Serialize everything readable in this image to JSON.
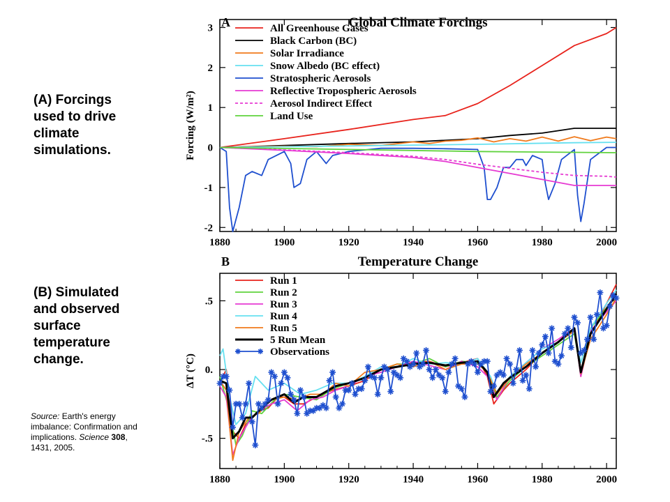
{
  "captions": {
    "a": "(A) Forcings used to drive climate simulations.",
    "b": "(B) Simulated and observed surface temperature change."
  },
  "source": {
    "label": "Source:",
    "text": " Earth's energy imbalance: Confirmation and implications. ",
    "journal": "Science",
    "volume": "308",
    "pages": ", 1431, 2005."
  },
  "colors": {
    "ghg": "#e8231c",
    "bc": "#000000",
    "solar": "#f07a1c",
    "snow": "#66e0f0",
    "strat": "#1e4fcf",
    "refl": "#e63ad2",
    "indirect": "#e63ad2",
    "land": "#5fd23c",
    "run1": "#e8231c",
    "run2": "#5fd23c",
    "run3": "#e63ad2",
    "run4": "#66e0f0",
    "run5": "#f07a1c",
    "mean": "#000000",
    "obs": "#1e4fcf"
  },
  "chart_data": [
    {
      "type": "line",
      "panel_letter": "A",
      "title": "Global Climate Forcings",
      "ylabel": "Forcing (W/m²)",
      "xlim": [
        1880,
        2003
      ],
      "ylim": [
        -2.1,
        3.2
      ],
      "x_ticks": [
        "1880",
        "1900",
        "1920",
        "1940",
        "1960",
        "1980",
        "2000"
      ],
      "y_ticks": [
        "3",
        "2",
        "1",
        "0",
        "-1",
        "-2"
      ],
      "legend_position": "top-left",
      "series": [
        {
          "name": "All Greenhouse Gases",
          "color_key": "ghg",
          "x": [
            1880,
            1900,
            1920,
            1940,
            1950,
            1960,
            1970,
            1980,
            1990,
            2000,
            2003
          ],
          "values": [
            0,
            0.22,
            0.45,
            0.7,
            0.8,
            1.1,
            1.55,
            2.05,
            2.55,
            2.85,
            3.0
          ]
        },
        {
          "name": "Black Carbon (BC)",
          "color_key": "bc",
          "x": [
            1880,
            1900,
            1920,
            1940,
            1960,
            1970,
            1980,
            1990,
            2003
          ],
          "values": [
            0,
            0.05,
            0.1,
            0.14,
            0.22,
            0.3,
            0.36,
            0.48,
            0.48
          ]
        },
        {
          "name": "Solar Irradiance",
          "color_key": "solar",
          "x": [
            1880,
            1890,
            1900,
            1910,
            1920,
            1930,
            1940,
            1945,
            1950,
            1955,
            1960,
            1965,
            1970,
            1975,
            1980,
            1985,
            1990,
            1995,
            2000,
            2003
          ],
          "values": [
            0,
            0.02,
            0.03,
            0.02,
            0.08,
            0.05,
            0.14,
            0.1,
            0.16,
            0.18,
            0.24,
            0.14,
            0.22,
            0.16,
            0.26,
            0.16,
            0.27,
            0.17,
            0.26,
            0.22
          ]
        },
        {
          "name": "Snow Albedo (BC effect)",
          "color_key": "snow",
          "x": [
            1880,
            1920,
            1960,
            1990,
            2003
          ],
          "values": [
            0,
            0.04,
            0.08,
            0.12,
            0.13
          ]
        },
        {
          "name": "Stratospheric Aerosols",
          "color_key": "strat",
          "x": [
            1880,
            1882,
            1883,
            1884,
            1886,
            1888,
            1890,
            1893,
            1895,
            1900,
            1902,
            1903,
            1905,
            1907,
            1910,
            1912,
            1913,
            1915,
            1920,
            1930,
            1940,
            1950,
            1960,
            1962,
            1963,
            1964,
            1966,
            1968,
            1970,
            1972,
            1974,
            1975,
            1977,
            1980,
            1981,
            1982,
            1984,
            1986,
            1990,
            1991,
            1992,
            1993,
            1995,
            2000,
            2003
          ],
          "values": [
            0,
            -0.1,
            -1.5,
            -2.1,
            -1.5,
            -0.7,
            -0.6,
            -0.7,
            -0.3,
            -0.1,
            -0.4,
            -1.0,
            -0.9,
            -0.3,
            -0.1,
            -0.3,
            -0.4,
            -0.2,
            -0.1,
            -0.02,
            -0.02,
            -0.03,
            -0.05,
            -0.5,
            -1.3,
            -1.3,
            -1.0,
            -0.5,
            -0.5,
            -0.3,
            -0.3,
            -0.45,
            -0.2,
            -0.3,
            -0.9,
            -1.3,
            -0.9,
            -0.3,
            -0.05,
            -1.2,
            -1.85,
            -1.4,
            -0.3,
            0,
            0
          ]
        },
        {
          "name": "Reflective Tropospheric Aerosols",
          "color_key": "refl",
          "x": [
            1880,
            1900,
            1920,
            1940,
            1950,
            1960,
            1970,
            1980,
            1990,
            2000,
            2003
          ],
          "values": [
            0,
            -0.07,
            -0.15,
            -0.25,
            -0.35,
            -0.5,
            -0.65,
            -0.8,
            -0.95,
            -0.95,
            -0.95
          ]
        },
        {
          "name": "Aerosol Indirect Effect",
          "color_key": "indirect",
          "dashed": true,
          "x": [
            1880,
            1900,
            1920,
            1940,
            1950,
            1960,
            1970,
            1980,
            1990,
            2000,
            2003
          ],
          "values": [
            0,
            -0.06,
            -0.13,
            -0.22,
            -0.3,
            -0.42,
            -0.52,
            -0.62,
            -0.7,
            -0.72,
            -0.74
          ]
        },
        {
          "name": "Land Use",
          "color_key": "land",
          "x": [
            1880,
            1920,
            1960,
            2003
          ],
          "values": [
            0,
            -0.05,
            -0.1,
            -0.13
          ]
        }
      ]
    },
    {
      "type": "line",
      "panel_letter": "B",
      "title": "Temperature Change",
      "ylabel": "ΔT (°C)",
      "xlim": [
        1880,
        2003
      ],
      "ylim": [
        -0.72,
        0.7
      ],
      "x_ticks": [
        "1880",
        "1900",
        "1920",
        "1940",
        "1960",
        "1980",
        "2000"
      ],
      "y_ticks": [
        ".5",
        "0.",
        "-.5"
      ],
      "legend_position": "top-left",
      "series": [
        {
          "name": "Run 1",
          "color_key": "run1",
          "x": [
            1880,
            1882,
            1884,
            1886,
            1888,
            1890,
            1892,
            1895,
            1898,
            1900,
            1903,
            1906,
            1910,
            1915,
            1920,
            1925,
            1930,
            1935,
            1940,
            1945,
            1950,
            1955,
            1960,
            1963,
            1965,
            1968,
            1970,
            1975,
            1980,
            1985,
            1990,
            1992,
            1995,
            2000,
            2003
          ],
          "values": [
            -0.1,
            0,
            -0.45,
            -0.5,
            -0.4,
            -0.35,
            -0.3,
            -0.28,
            -0.2,
            -0.2,
            -0.25,
            -0.25,
            -0.2,
            -0.15,
            -0.12,
            -0.08,
            0,
            0.02,
            0.05,
            0.06,
            0.02,
            0.05,
            0.08,
            -0.05,
            -0.25,
            -0.15,
            -0.1,
            0,
            0.12,
            0.2,
            0.3,
            -0.05,
            0.25,
            0.48,
            0.62
          ]
        },
        {
          "name": "Run 2",
          "color_key": "run2",
          "x": [
            1880,
            1883,
            1885,
            1887,
            1890,
            1893,
            1897,
            1900,
            1905,
            1910,
            1915,
            1920,
            1925,
            1930,
            1935,
            1940,
            1945,
            1950,
            1955,
            1960,
            1963,
            1966,
            1970,
            1975,
            1980,
            1985,
            1990,
            1992,
            1995,
            2000,
            2003
          ],
          "values": [
            -0.05,
            -0.3,
            -0.55,
            -0.48,
            -0.3,
            -0.32,
            -0.22,
            -0.18,
            -0.2,
            -0.22,
            -0.14,
            -0.1,
            -0.06,
            0,
            0.04,
            0.04,
            0.08,
            0.02,
            0.06,
            0.05,
            -0.02,
            -0.2,
            -0.08,
            0.02,
            0.1,
            0.18,
            0.26,
            -0.02,
            0.3,
            0.45,
            0.55
          ]
        },
        {
          "name": "Run 3",
          "color_key": "run3",
          "x": [
            1880,
            1882,
            1884,
            1886,
            1889,
            1892,
            1896,
            1900,
            1904,
            1908,
            1912,
            1916,
            1920,
            1925,
            1930,
            1935,
            1940,
            1945,
            1950,
            1955,
            1960,
            1963,
            1966,
            1970,
            1975,
            1980,
            1985,
            1990,
            1992,
            1995,
            2000,
            2003
          ],
          "values": [
            -0.12,
            -0.2,
            -0.62,
            -0.5,
            -0.38,
            -0.3,
            -0.25,
            -0.22,
            -0.3,
            -0.22,
            -0.2,
            -0.15,
            -0.12,
            -0.05,
            -0.02,
            0.02,
            0.06,
            0.03,
            0.0,
            0.06,
            0.02,
            -0.05,
            -0.22,
            -0.05,
            0.05,
            0.15,
            0.22,
            0.3,
            -0.05,
            0.28,
            0.42,
            0.5
          ]
        },
        {
          "name": "Run 4",
          "color_key": "run4",
          "x": [
            1880,
            1881,
            1883,
            1885,
            1888,
            1891,
            1895,
            1900,
            1905,
            1910,
            1915,
            1920,
            1925,
            1930,
            1935,
            1940,
            1945,
            1950,
            1955,
            1960,
            1964,
            1966,
            1970,
            1975,
            1980,
            1985,
            1990,
            1992,
            1995,
            2000,
            2003
          ],
          "values": [
            0.1,
            0.15,
            -0.2,
            -0.4,
            -0.32,
            -0.05,
            -0.15,
            -0.1,
            -0.18,
            -0.15,
            -0.1,
            -0.1,
            -0.05,
            0.02,
            0.02,
            0.08,
            0.04,
            0.05,
            0.04,
            0.08,
            -0.05,
            -0.18,
            -0.05,
            0.05,
            0.15,
            0.2,
            0.28,
            0.05,
            0.3,
            0.48,
            0.58
          ]
        },
        {
          "name": "Run 5",
          "color_key": "run5",
          "x": [
            1880,
            1882,
            1884,
            1886,
            1889,
            1892,
            1896,
            1900,
            1904,
            1908,
            1912,
            1916,
            1920,
            1925,
            1930,
            1935,
            1940,
            1945,
            1950,
            1955,
            1960,
            1963,
            1966,
            1970,
            1975,
            1980,
            1985,
            1990,
            1992,
            1995,
            2000,
            2003
          ],
          "values": [
            -0.08,
            -0.15,
            -0.66,
            -0.45,
            -0.35,
            -0.32,
            -0.22,
            -0.2,
            -0.22,
            -0.18,
            -0.18,
            -0.1,
            -0.12,
            -0.02,
            0,
            0.04,
            0.02,
            0.06,
            0.0,
            0.04,
            0.04,
            -0.02,
            -0.18,
            -0.06,
            0.04,
            0.12,
            0.2,
            0.28,
            -0.03,
            0.22,
            0.4,
            0.52
          ]
        },
        {
          "name": "5 Run Mean",
          "color_key": "mean",
          "thick": true,
          "x": [
            1880,
            1882,
            1884,
            1886,
            1888,
            1890,
            1893,
            1896,
            1900,
            1903,
            1906,
            1910,
            1913,
            1916,
            1920,
            1925,
            1930,
            1935,
            1940,
            1945,
            1950,
            1955,
            1960,
            1963,
            1965,
            1968,
            1970,
            1975,
            1980,
            1985,
            1990,
            1992,
            1995,
            2000,
            2003
          ],
          "values": [
            -0.08,
            -0.1,
            -0.5,
            -0.45,
            -0.35,
            -0.35,
            -0.28,
            -0.22,
            -0.18,
            -0.24,
            -0.2,
            -0.2,
            -0.16,
            -0.12,
            -0.1,
            -0.06,
            0,
            0.02,
            0.04,
            0.05,
            0.03,
            0.05,
            0.06,
            -0.02,
            -0.2,
            -0.1,
            -0.06,
            0.02,
            0.12,
            0.2,
            0.3,
            -0.02,
            0.26,
            0.44,
            0.55
          ]
        },
        {
          "name": "Observations",
          "color_key": "obs",
          "markers": true,
          "x": [
            1880,
            1881,
            1882,
            1883,
            1884,
            1885,
            1886,
            1887,
            1888,
            1889,
            1890,
            1891,
            1892,
            1893,
            1894,
            1895,
            1896,
            1897,
            1898,
            1899,
            1900,
            1901,
            1902,
            1903,
            1904,
            1905,
            1906,
            1907,
            1908,
            1909,
            1910,
            1911,
            1912,
            1913,
            1914,
            1915,
            1916,
            1917,
            1918,
            1919,
            1920,
            1921,
            1922,
            1923,
            1924,
            1925,
            1926,
            1927,
            1928,
            1929,
            1930,
            1931,
            1932,
            1933,
            1934,
            1935,
            1936,
            1937,
            1938,
            1939,
            1940,
            1941,
            1942,
            1943,
            1944,
            1945,
            1946,
            1947,
            1948,
            1949,
            1950,
            1951,
            1952,
            1953,
            1954,
            1955,
            1956,
            1957,
            1958,
            1959,
            1960,
            1961,
            1962,
            1963,
            1964,
            1965,
            1966,
            1967,
            1968,
            1969,
            1970,
            1971,
            1972,
            1973,
            1974,
            1975,
            1976,
            1977,
            1978,
            1979,
            1980,
            1981,
            1982,
            1983,
            1984,
            1985,
            1986,
            1987,
            1988,
            1989,
            1990,
            1991,
            1992,
            1993,
            1994,
            1995,
            1996,
            1997,
            1998,
            1999,
            2000,
            2001,
            2002,
            2003
          ],
          "values": [
            -0.1,
            -0.05,
            -0.05,
            -0.15,
            -0.42,
            -0.25,
            -0.25,
            -0.35,
            -0.25,
            -0.1,
            -0.38,
            -0.55,
            -0.25,
            -0.28,
            -0.25,
            -0.22,
            -0.02,
            -0.05,
            -0.25,
            -0.1,
            -0.02,
            -0.06,
            -0.18,
            -0.22,
            -0.32,
            -0.15,
            -0.2,
            -0.32,
            -0.3,
            -0.3,
            -0.28,
            -0.28,
            -0.26,
            -0.28,
            -0.08,
            -0.02,
            -0.2,
            -0.28,
            -0.25,
            -0.15,
            -0.15,
            -0.1,
            -0.18,
            -0.14,
            -0.14,
            -0.08,
            0.02,
            -0.05,
            -0.06,
            -0.18,
            -0.06,
            0.02,
            0.0,
            -0.16,
            -0.02,
            -0.04,
            -0.06,
            0.08,
            0.06,
            0.02,
            0.04,
            0.12,
            0.02,
            0.04,
            0.14,
            0.0,
            -0.06,
            0.0,
            -0.04,
            -0.06,
            -0.16,
            -0.02,
            0.04,
            0.08,
            -0.12,
            -0.14,
            -0.2,
            0.04,
            0.06,
            0.04,
            -0.02,
            0.04,
            0.06,
            0.06,
            -0.16,
            -0.12,
            -0.04,
            -0.02,
            -0.04,
            0.08,
            0.04,
            -0.1,
            0.0,
            0.14,
            -0.08,
            -0.04,
            -0.14,
            0.14,
            0.02,
            0.12,
            0.18,
            0.24,
            0.12,
            0.3,
            0.06,
            0.04,
            0.1,
            0.26,
            0.3,
            0.16,
            0.38,
            0.34,
            0.12,
            0.14,
            0.22,
            0.38,
            0.22,
            0.4,
            0.56,
            0.3,
            0.32,
            0.46,
            0.54,
            0.52
          ]
        }
      ]
    }
  ]
}
